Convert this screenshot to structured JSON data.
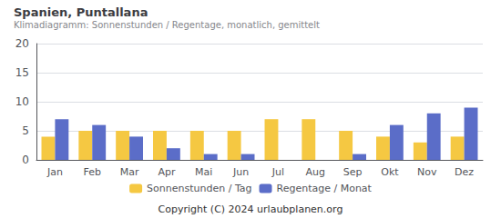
{
  "chart_data": {
    "type": "bar",
    "title": "Spanien, Puntallana",
    "subtitle": "Klimadiagramm: Sonnenstunden / Regentage, monatlich, gemittelt",
    "categories": [
      "Jan",
      "Feb",
      "Mar",
      "Apr",
      "Mai",
      "Jun",
      "Jul",
      "Aug",
      "Sep",
      "Okt",
      "Nov",
      "Dez"
    ],
    "series": [
      {
        "name": "Sonnenstunden / Tag",
        "color": "#F5C842",
        "values": [
          4,
          5,
          5,
          5,
          5,
          5,
          7,
          7,
          5,
          4,
          3,
          4
        ]
      },
      {
        "name": "Regentage / Monat",
        "color": "#5B6DC8",
        "values": [
          7,
          6,
          4,
          2,
          1,
          1,
          0,
          0,
          1,
          6,
          8,
          9
        ]
      }
    ],
    "ylim": [
      0,
      20
    ],
    "yticks": [
      0,
      5,
      10,
      15,
      20
    ],
    "grid": true,
    "legend": "bottom",
    "annotations": [
      "Copyright (C) 2024 urlaubplanen.org"
    ]
  }
}
